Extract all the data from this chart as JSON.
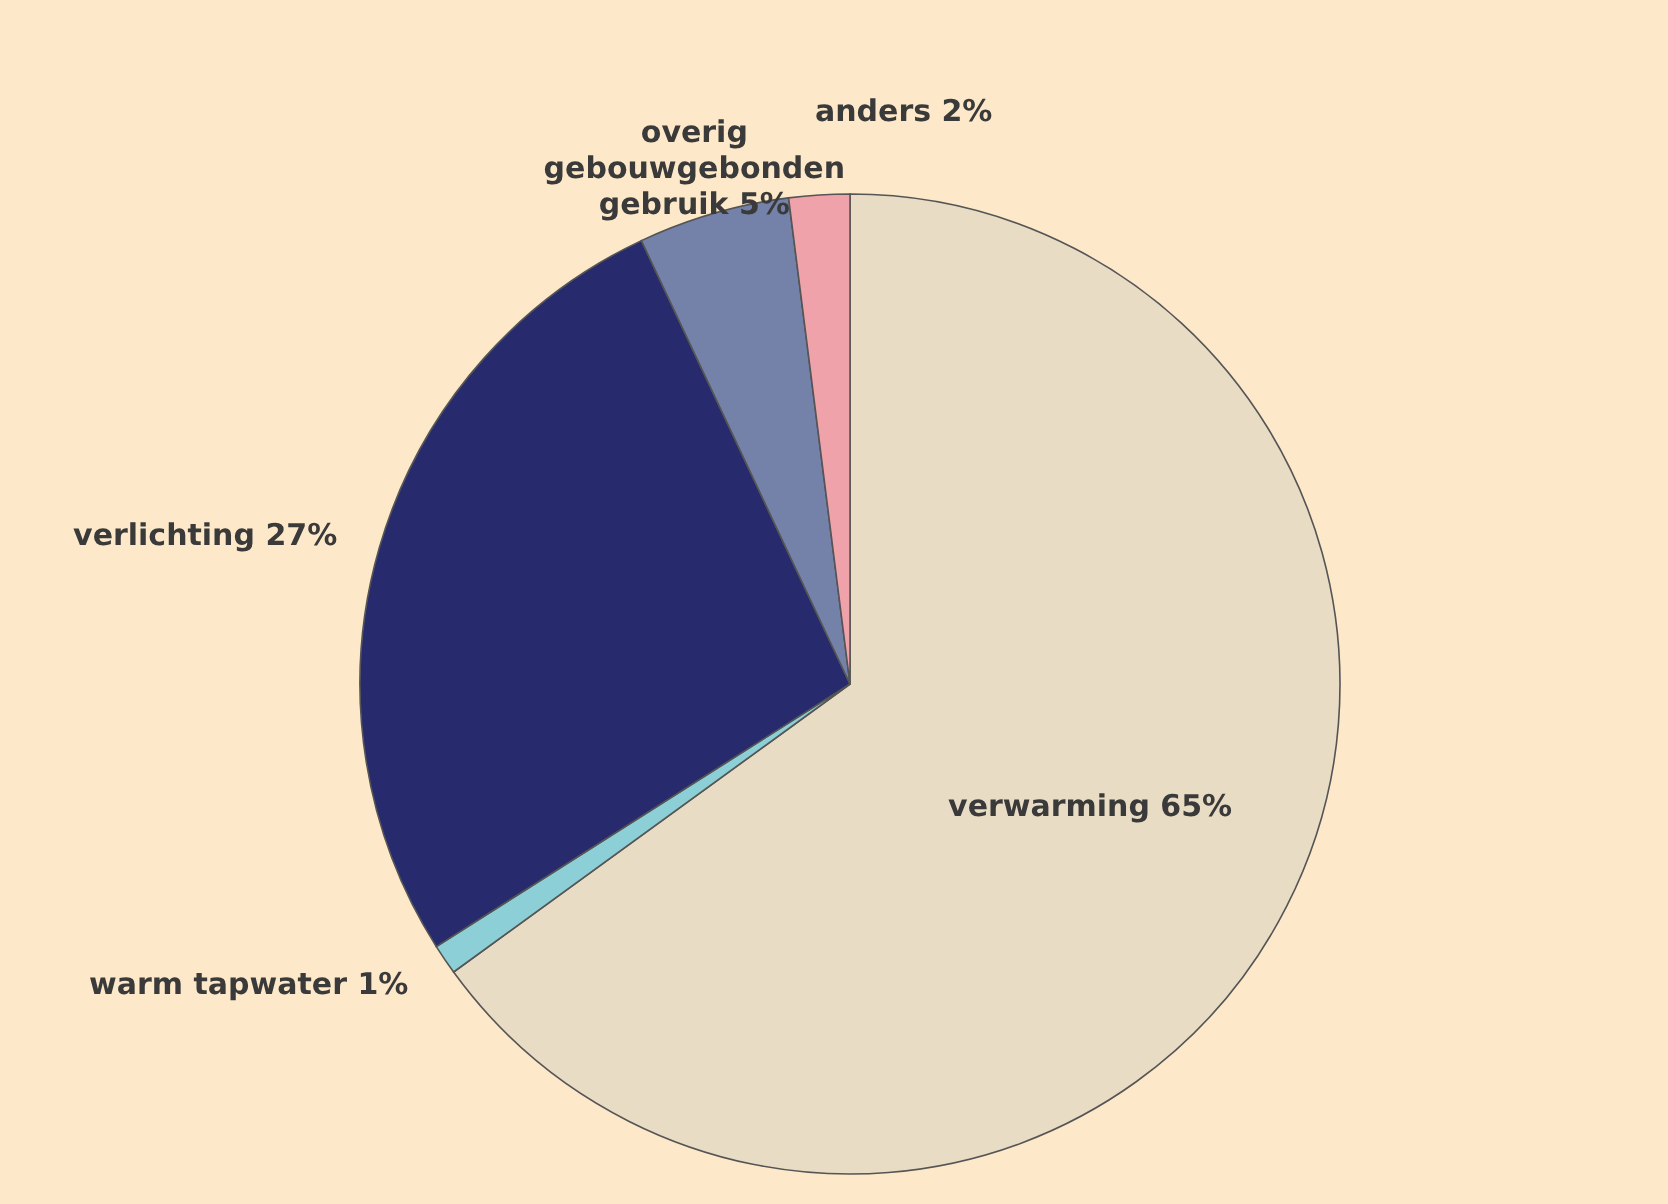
{
  "chart_data": {
    "type": "pie",
    "categories": [
      "verwarming",
      "warm tapwater",
      "verlichting",
      "overig gebouwgebonden gebruik",
      "anders"
    ],
    "values": [
      65,
      1,
      27,
      5,
      2
    ],
    "value_labels": [
      "65%",
      "1%",
      "27%",
      "5%",
      "2%"
    ],
    "colors": [
      "#e9dcc5",
      "#8ccfd6",
      "#272b6e",
      "#7482aa",
      "#f0a2aa"
    ]
  }
}
